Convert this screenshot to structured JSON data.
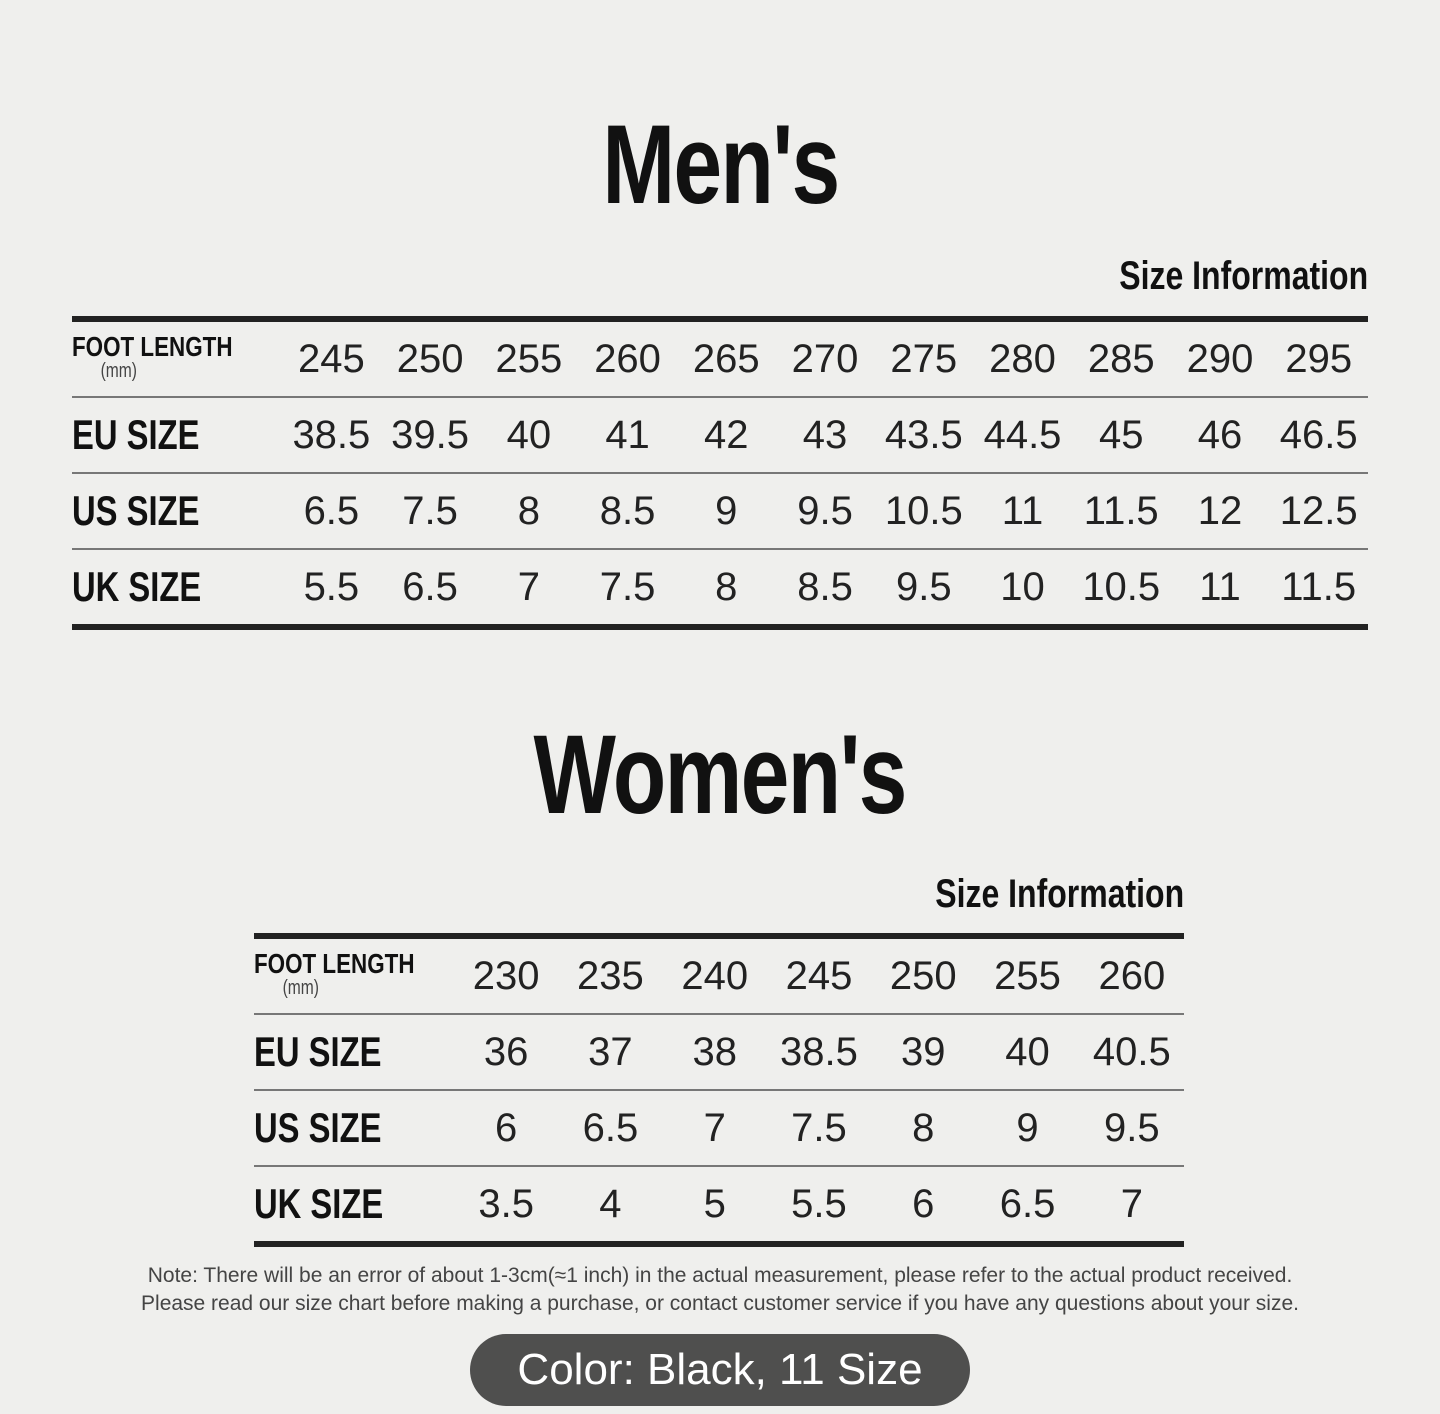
{
  "mens": {
    "title": "Men's",
    "subtitle": "Size Information",
    "header_label": "FOOT LENGTH",
    "header_unit": "(mm)",
    "foot_length": [
      "245",
      "250",
      "255",
      "260",
      "265",
      "270",
      "275",
      "280",
      "285",
      "290",
      "295"
    ],
    "rows": [
      {
        "label": "EU SIZE",
        "values": [
          "38.5",
          "39.5",
          "40",
          "41",
          "42",
          "43",
          "43.5",
          "44.5",
          "45",
          "46",
          "46.5"
        ]
      },
      {
        "label": "US SIZE",
        "values": [
          "6.5",
          "7.5",
          "8",
          "8.5",
          "9",
          "9.5",
          "10.5",
          "11",
          "11.5",
          "12",
          "12.5"
        ]
      },
      {
        "label": "UK SIZE",
        "values": [
          "5.5",
          "6.5",
          "7",
          "7.5",
          "8",
          "8.5",
          "9.5",
          "10",
          "10.5",
          "11",
          "11.5"
        ]
      }
    ]
  },
  "womens": {
    "title": "Women's",
    "subtitle": "Size Information",
    "header_label": "FOOT LENGTH",
    "header_unit": "(mm)",
    "foot_length": [
      "230",
      "235",
      "240",
      "245",
      "250",
      "255",
      "260"
    ],
    "rows": [
      {
        "label": "EU SIZE",
        "values": [
          "36",
          "37",
          "38",
          "38.5",
          "39",
          "40",
          "40.5"
        ]
      },
      {
        "label": "US SIZE",
        "values": [
          "6",
          "6.5",
          "7",
          "7.5",
          "8",
          "9",
          "9.5"
        ]
      },
      {
        "label": "UK SIZE",
        "values": [
          "3.5",
          "4",
          "5",
          "5.5",
          "6",
          "6.5",
          "7"
        ]
      }
    ]
  },
  "note": {
    "line1": "Note: There will be an error of about 1-3cm(≈1 inch) in the actual measurement, please refer to the actual product received.",
    "line2": "Please read our size chart before making a purchase, or contact customer service if you have any questions about your size."
  },
  "selection_badge": "Color: Black, 11 Size"
}
